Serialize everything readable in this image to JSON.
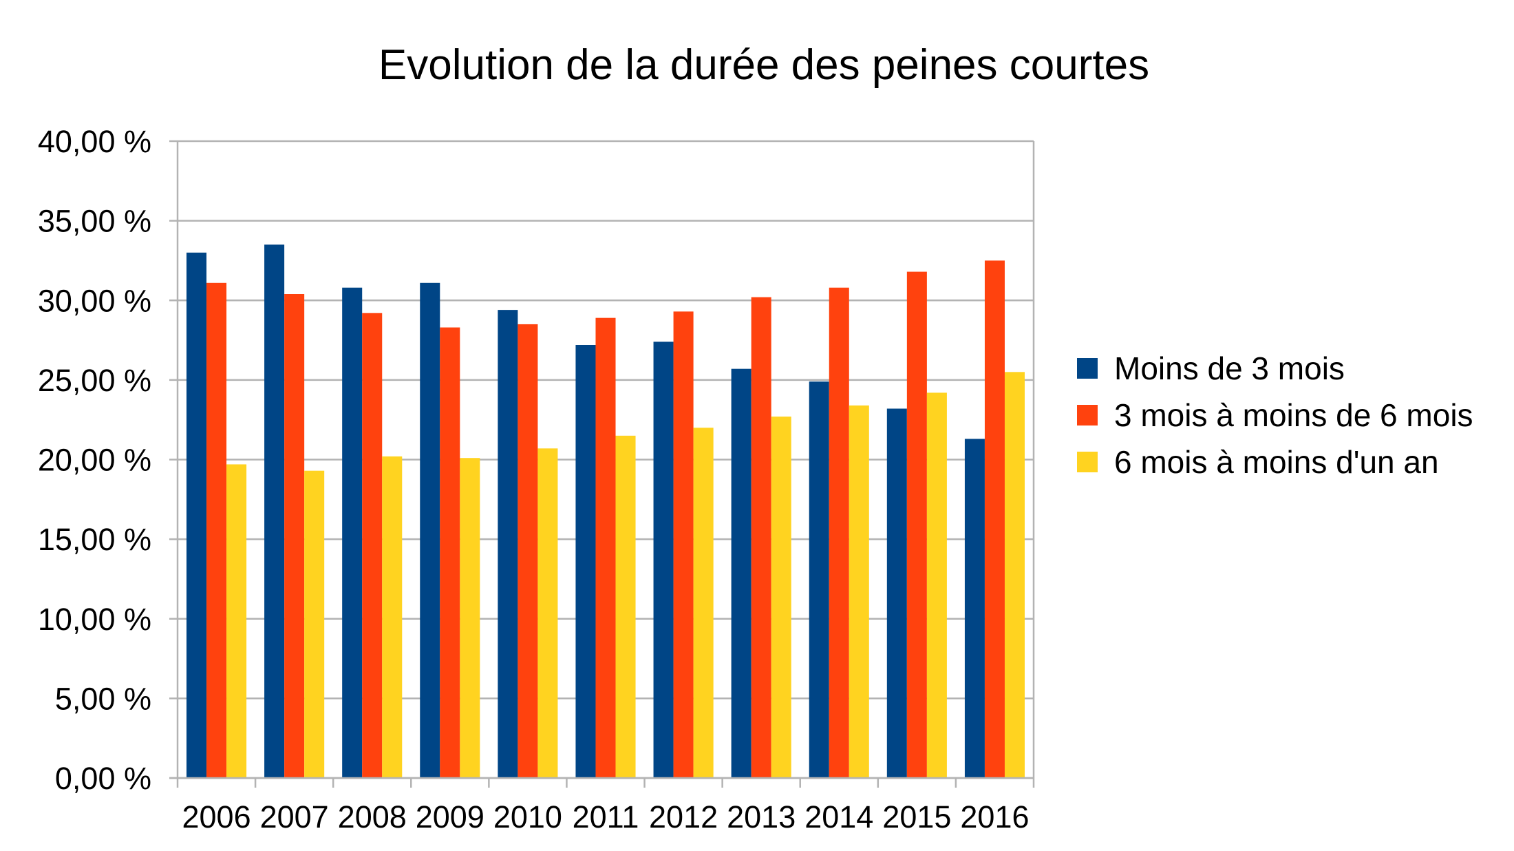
{
  "chart_data": {
    "type": "bar",
    "title": "Evolution de la durée des peines courtes",
    "xlabel": "",
    "ylabel": "",
    "categories": [
      "2006",
      "2007",
      "2008",
      "2009",
      "2010",
      "2011",
      "2012",
      "2013",
      "2014",
      "2015",
      "2016"
    ],
    "series": [
      {
        "name": "Moins de 3 mois",
        "color": "#004586",
        "values": [
          33.0,
          33.5,
          30.8,
          31.1,
          29.4,
          27.2,
          27.4,
          25.7,
          24.9,
          23.2,
          21.3
        ]
      },
      {
        "name": "3 mois à moins de 6 mois",
        "color": "#ff420e",
        "values": [
          31.1,
          30.4,
          29.2,
          28.3,
          28.5,
          28.9,
          29.3,
          30.2,
          30.8,
          31.8,
          32.5
        ]
      },
      {
        "name": "6 mois à moins d'un an",
        "color": "#ffd320",
        "values": [
          19.7,
          19.3,
          20.2,
          20.1,
          20.7,
          21.5,
          22.0,
          22.7,
          23.4,
          24.2,
          25.5
        ]
      }
    ],
    "y_ticks": [
      "0,00 %",
      "5,00 %",
      "10,00 %",
      "15,00 %",
      "20,00 %",
      "25,00 %",
      "30,00 %",
      "35,00 %",
      "40,00 %"
    ],
    "ylim": [
      0,
      40
    ],
    "grid": true,
    "legend_position": "right"
  }
}
